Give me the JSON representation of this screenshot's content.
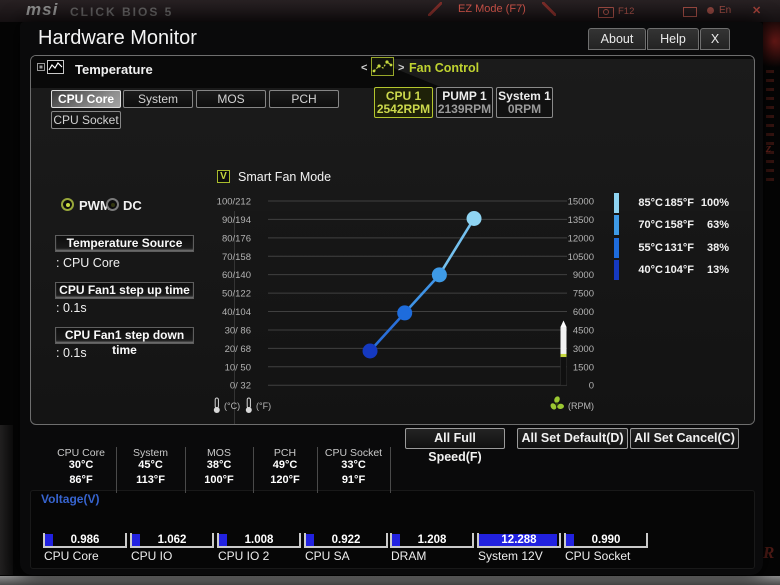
{
  "topbar": {
    "logo": "msi",
    "bios_name": "CLICK BIOS 5",
    "ez_mode_label": "EZ Mode (F7)",
    "screenshot_key": "F12",
    "language": "En",
    "close_label": "✕"
  },
  "dialog": {
    "title": "Hardware Monitor",
    "about_label": "About",
    "help_label": "Help",
    "close_label": "X"
  },
  "temperature": {
    "title": "Temperature",
    "tabs": [
      {
        "label": "CPU Core",
        "selected": true
      },
      {
        "label": "System",
        "selected": false
      },
      {
        "label": "MOS",
        "selected": false
      },
      {
        "label": "PCH",
        "selected": false
      },
      {
        "label": "CPU Socket",
        "selected": false
      }
    ]
  },
  "fan_control": {
    "title": "Fan Control",
    "nav_prev": "<",
    "nav_next": ">",
    "fans": [
      {
        "label": "CPU 1",
        "rpm": "2542RPM",
        "selected": true
      },
      {
        "label": "PUMP 1",
        "rpm": "2139RPM",
        "selected": false
      },
      {
        "label": "System 1",
        "rpm": "0RPM",
        "selected": false
      }
    ]
  },
  "controls": {
    "modes": [
      {
        "label": "PWM",
        "selected": true
      },
      {
        "label": "DC",
        "selected": false
      }
    ],
    "fields": [
      {
        "label": "Temperature Source",
        "value": ": CPU Core"
      },
      {
        "label": "CPU Fan1 step up time",
        "value": ": 0.1s"
      },
      {
        "label": "CPU Fan1 step down time",
        "value": ": 0.1s"
      }
    ]
  },
  "smart_fan": {
    "label": "Smart Fan Mode",
    "checked": true,
    "check_glyph": "V"
  },
  "chart_data": {
    "type": "line",
    "title": "Smart Fan Mode",
    "x_temps_c": [
      40,
      55,
      70,
      85
    ],
    "duty_percent": [
      13,
      38,
      63,
      100
    ],
    "current_rpm": 2542,
    "rpm_axis_max": 15000,
    "left_axis_labels": [
      "100/212",
      "90/194",
      "80/176",
      "70/158",
      "60/140",
      "50/122",
      "40/104",
      "30/ 86",
      "20/ 68",
      "10/ 50",
      "0/ 32"
    ],
    "right_axis_labels": [
      "15000",
      "13500",
      "12000",
      "10500",
      "9000",
      "7500",
      "6000",
      "4500",
      "3000",
      "1500",
      "0"
    ],
    "left_axis_units": [
      "(°C)",
      "(°F)"
    ],
    "right_axis_unit": "(RPM)",
    "point_colors": [
      "#1539c0",
      "#1e6cdc",
      "#3e9ae6",
      "#8fd4f2"
    ],
    "segment_colors": [
      "#2a6fd9",
      "#3f93e6",
      "#74c0ee"
    ],
    "grid": true,
    "marker_color": "#c6d93f"
  },
  "fan_points_table": {
    "rows": [
      {
        "celsius": "85°C",
        "fahrenheit": "185°F",
        "percent": "100%",
        "color": "#8fd4f2"
      },
      {
        "celsius": "70°C",
        "fahrenheit": "158°F",
        "percent": "63%",
        "color": "#3e9ae6"
      },
      {
        "celsius": "55°C",
        "fahrenheit": "131°F",
        "percent": "38%",
        "color": "#1e6cdc"
      },
      {
        "celsius": "40°C",
        "fahrenheit": "104°F",
        "percent": "13%",
        "color": "#1539c0"
      }
    ]
  },
  "action_buttons": [
    {
      "label": "All Full Speed(F)"
    },
    {
      "label": "All Set Default(D)"
    },
    {
      "label": "All Set Cancel(C)"
    }
  ],
  "temperatures": [
    {
      "name": "CPU Core",
      "celsius": "30°C",
      "fahrenheit": "86°F"
    },
    {
      "name": "System",
      "celsius": "45°C",
      "fahrenheit": "113°F"
    },
    {
      "name": "MOS",
      "celsius": "38°C",
      "fahrenheit": "100°F"
    },
    {
      "name": "PCH",
      "celsius": "49°C",
      "fahrenheit": "120°F"
    },
    {
      "name": "CPU Socket",
      "celsius": "33°C",
      "fahrenheit": "91°F"
    }
  ],
  "voltages": {
    "title": "Voltage(V)",
    "items": [
      {
        "name": "CPU Core",
        "value": "0.986"
      },
      {
        "name": "CPU IO",
        "value": "1.062"
      },
      {
        "name": "CPU IO 2",
        "value": "1.008"
      },
      {
        "name": "CPU SA",
        "value": "0.922"
      },
      {
        "name": "DRAM",
        "value": "1.208"
      },
      {
        "name": "System 12V",
        "value": "12.288"
      },
      {
        "name": "CPU Socket",
        "value": "0.990"
      }
    ]
  },
  "colors": {
    "accent_green": "#c6d93f",
    "voltage_fill": "#2121e0",
    "voltage_label_blue": "#3764cf",
    "ez_red": "#d0544a"
  }
}
